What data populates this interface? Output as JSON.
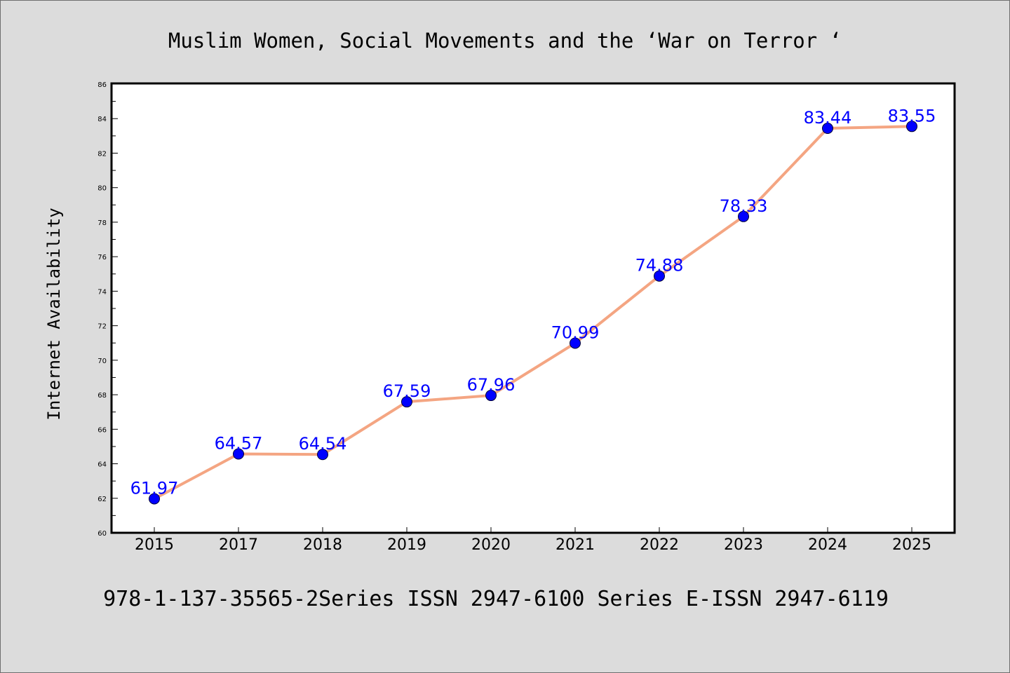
{
  "chart_data": {
    "type": "line",
    "title": "Muslim Women, Social Movements and the  ‘War on Terror ‘",
    "xlabel": "",
    "ylabel": "Internet Availability",
    "categories": [
      "2015",
      "2017",
      "2018",
      "2019",
      "2020",
      "2021",
      "2022",
      "2023",
      "2024",
      "2025"
    ],
    "series": [
      {
        "values": [
          61.97,
          64.57,
          64.54,
          67.59,
          67.96,
          70.99,
          74.88,
          78.33,
          83.44,
          83.55
        ],
        "labels": [
          "61.97",
          "64.57",
          "64.54",
          "67.59",
          "67.96",
          "70.99",
          "74.88",
          "78.33",
          "83.44",
          "83.55"
        ]
      }
    ],
    "ylim": [
      60,
      86
    ],
    "yticks": [
      60,
      62,
      64,
      66,
      68,
      70,
      72,
      74,
      76,
      78,
      80,
      82,
      84,
      86
    ],
    "ytick_labels": [
      "60",
      "62",
      "64",
      "66",
      "68",
      "70",
      "72",
      "74",
      "76",
      "78",
      "80",
      "82",
      "84",
      "86"
    ],
    "grid": false,
    "legend": "none",
    "colors": {
      "line": "#f4a582",
      "marker": "#0000ff",
      "data_label": "#0000ff",
      "background": "#dcdcdc",
      "plot_background": "#ffffff"
    }
  },
  "footer": "978-1-137-35565-2Series ISSN 2947-6100 Series E-ISSN 2947-6119"
}
